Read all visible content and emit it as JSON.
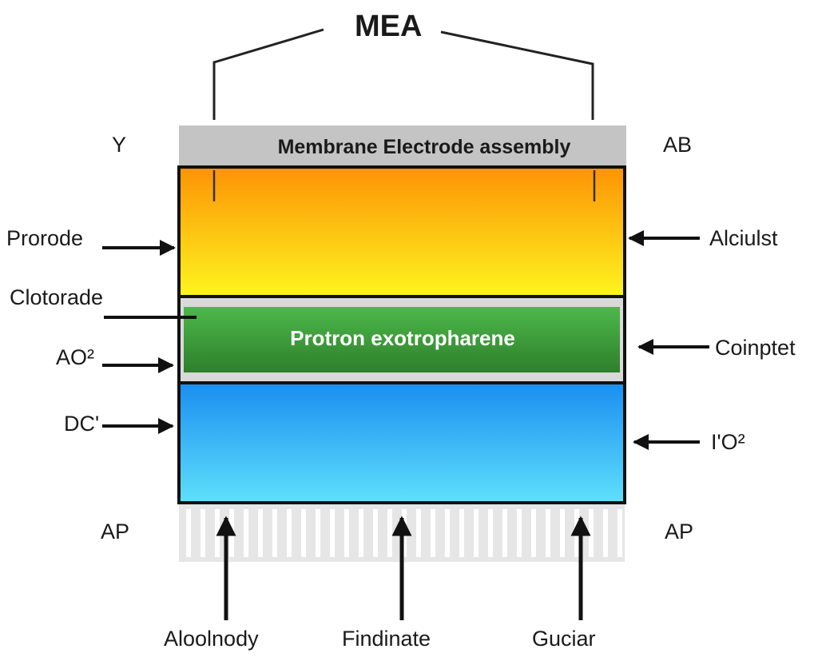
{
  "title": "MEA",
  "header_bar": {
    "label": "Membrane Electrode assembly"
  },
  "membrane": {
    "label": "Protron exotropharene"
  },
  "left_labels": {
    "top_corner": "Y",
    "prorode": "Prorode",
    "clotorade": "Clotorade",
    "ao2": "AO²",
    "dc": "DC'",
    "bottom_corner": "AP"
  },
  "right_labels": {
    "top_corner": "AB",
    "alciulst": "Alciulst",
    "coinptet": "Coinptet",
    "io2": "I'O²",
    "bottom_corner": "AP"
  },
  "bottom_labels": [
    "Aloolnody",
    "Findinate",
    "Guciar"
  ],
  "colors": {
    "anode_top": "#fd9305",
    "anode_bottom": "#fdf51f",
    "membrane_top": "#4db84a",
    "membrane_bottom": "#2e7f2b",
    "cathode_top": "#1a8ef0",
    "cathode_bottom": "#5fe0fb",
    "header_bar": "#c4c4c4",
    "outline": "#111111"
  }
}
